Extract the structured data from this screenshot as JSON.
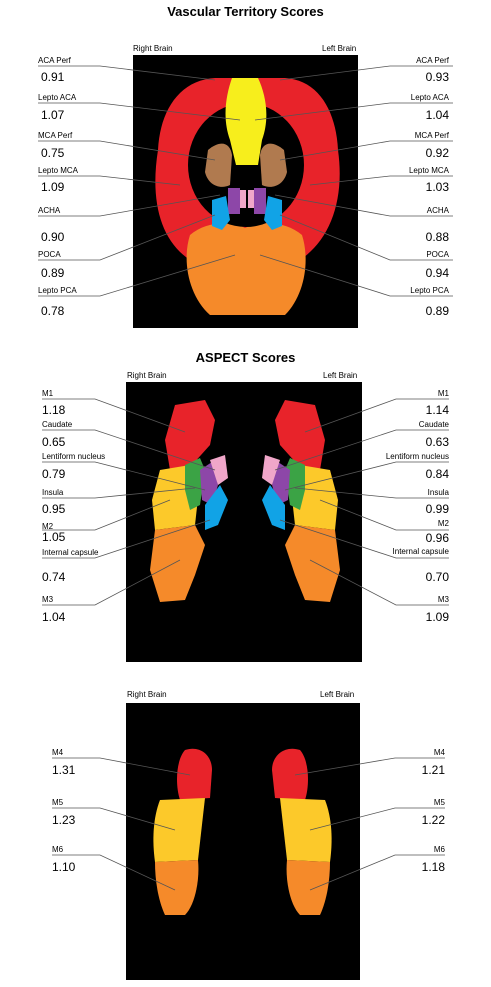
{
  "colors": {
    "red": "#e8232a",
    "yellow": "#f7ee1c",
    "brown": "#b07a4f",
    "purple": "#8d47a8",
    "pink": "#f0a6c9",
    "blue": "#11a3e6",
    "orange": "#f58a2a",
    "green": "#3ba345",
    "gold": "#fcc92a",
    "background": "#000000"
  },
  "panel1": {
    "title": "Vascular Territory Scores",
    "right_side": "Right Brain",
    "left_side": "Left Brain",
    "rows": [
      {
        "label_r": "ACA Perf",
        "val_r": "0.91",
        "label_l": "ACA Perf",
        "val_l": "0.93"
      },
      {
        "label_r": "Lepto ACA",
        "val_r": "1.07",
        "label_l": "Lepto ACA",
        "val_l": "1.04"
      },
      {
        "label_r": "MCA Perf",
        "val_r": "0.75",
        "label_l": "MCA Perf",
        "val_l": "0.92"
      },
      {
        "label_r": "Lepto MCA",
        "val_r": "1.09",
        "label_l": "Lepto MCA",
        "val_l": "1.03"
      },
      {
        "label_r": "ACHA",
        "val_r": "0.90",
        "label_l": "ACHA",
        "val_l": "0.88"
      },
      {
        "label_r": "POCA",
        "val_r": "0.89",
        "label_l": "POCA",
        "val_l": "0.94"
      },
      {
        "label_r": "Lepto PCA",
        "val_r": "0.78",
        "label_l": "Lepto PCA",
        "val_l": "0.89"
      }
    ]
  },
  "panel2": {
    "title": "ASPECT Scores",
    "right_side": "Right Brain",
    "left_side": "Left Brain",
    "rows": [
      {
        "label_r": "M1",
        "val_r": "1.18",
        "label_l": "M1",
        "val_l": "1.14"
      },
      {
        "label_r": "Caudate",
        "val_r": "0.65",
        "label_l": "Caudate",
        "val_l": "0.63"
      },
      {
        "label_r": "Lentiform nucleus",
        "val_r": "0.79",
        "label_l": "Lentiform nucleus",
        "val_l": "0.84"
      },
      {
        "label_r": "Insula",
        "val_r": "0.95",
        "label_l": "Insula",
        "val_l": "0.99"
      },
      {
        "label_r": "M2",
        "val_r": "1.05",
        "label_l": "M2",
        "val_l": "0.96"
      },
      {
        "label_r": "Internal capsule",
        "val_r": "0.74",
        "label_l": "Internal capsule",
        "val_l": "0.70"
      },
      {
        "label_r": "M3",
        "val_r": "1.04",
        "label_l": "M3",
        "val_l": "1.09"
      }
    ]
  },
  "panel3": {
    "right_side": "Right Brain",
    "left_side": "Left Brain",
    "rows": [
      {
        "label_r": "M4",
        "val_r": "1.31",
        "label_l": "M4",
        "val_l": "1.21"
      },
      {
        "label_r": "M5",
        "val_r": "1.23",
        "label_l": "M5",
        "val_l": "1.22"
      },
      {
        "label_r": "M6",
        "val_r": "1.10",
        "label_l": "M6",
        "val_l": "1.18"
      }
    ]
  }
}
